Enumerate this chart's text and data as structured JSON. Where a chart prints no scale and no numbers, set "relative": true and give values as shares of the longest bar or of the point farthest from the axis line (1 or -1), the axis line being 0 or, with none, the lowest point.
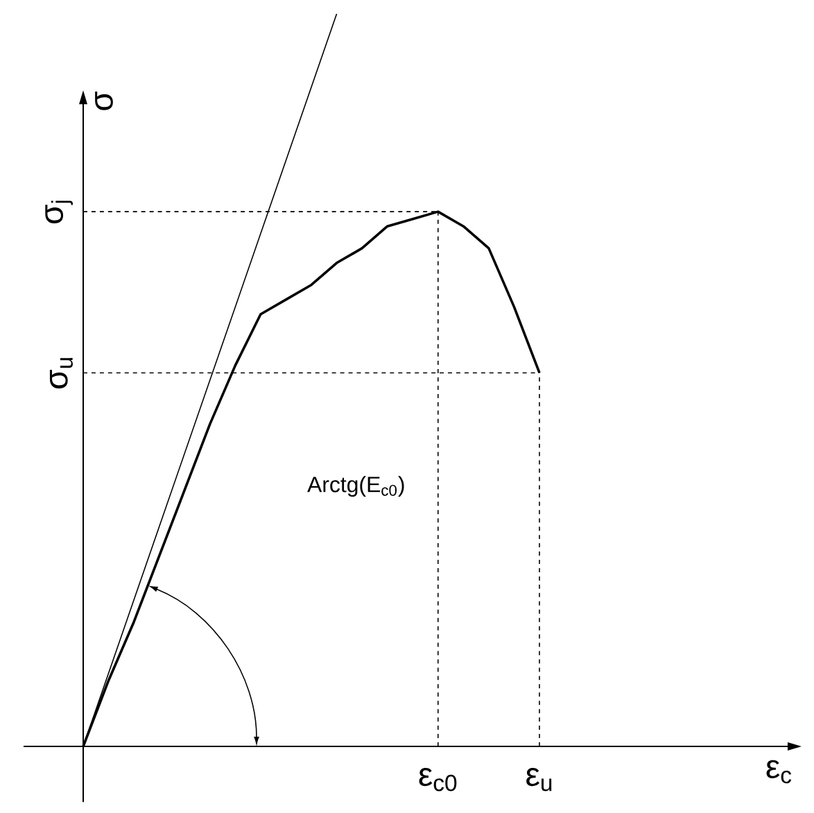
{
  "chart_data": {
    "type": "line",
    "relative": true,
    "ylabel": "σ",
    "annotations": [
      "Arctg(E$_{c0}$)",
      "ε$_{c}$"
    ],
    "categories": [
      null,
      null,
      null,
      null,
      null,
      null,
      null,
      null,
      null,
      null,
      null,
      null,
      null,
      null,
      "ε$_{c0}$",
      null,
      null,
      null,
      "ε$_{u}$"
    ],
    "series": [
      {
        "color": "#000000",
        "values": [
          0,
          0.09,
          0.17,
          0.26,
          0.35,
          0.44,
          0.52,
          0.59,
          0.61,
          0.63,
          0.66,
          0.68,
          0.71,
          0.72,
          0.73,
          0.71,
          0.68,
          0.6,
          0.51
        ]
      },
      {
        "color": "#000000",
        "values": [
          0,
          0.1,
          0.2,
          0.3,
          0.4,
          0.5,
          0.6,
          0.7,
          0.8,
          0.9,
          1.0,
          null,
          null,
          null,
          null,
          null,
          null,
          null,
          null
        ]
      }
    ],
    "ref_lines": [
      {
        "axis": "x",
        "value": "ε$_{c0}$",
        "line_style": "dashed"
      },
      {
        "axis": "y",
        "value": 0.73,
        "label": "σ$_{j}$",
        "line_style": "dashed"
      },
      {
        "axis": "x",
        "value": "ε$_{u}$",
        "line_style": "dashed"
      },
      {
        "axis": "y",
        "value": 0.51,
        "label": "σ$_{u}$",
        "line_style": "dashed"
      }
    ],
    "tick_labels": "x",
    "grid": false,
    "marker": "none",
    "line_style": "solid"
  }
}
